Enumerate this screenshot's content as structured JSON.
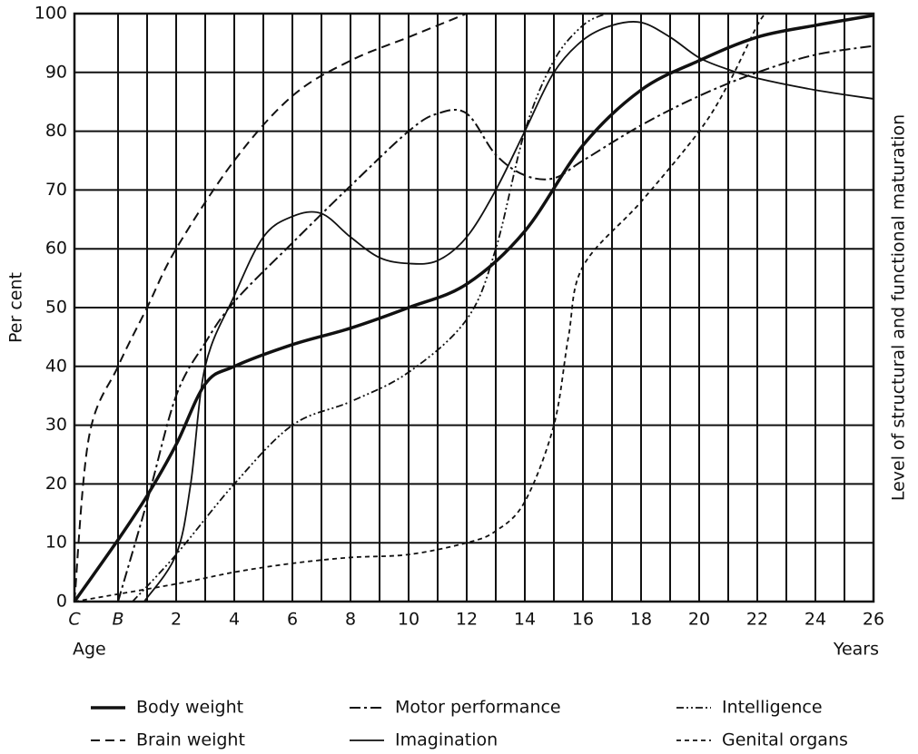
{
  "chart_data": {
    "type": "line",
    "ylabel": "Per cent",
    "y2label": "Level of structural and functional maturation",
    "xlabel_left": "Age",
    "xlabel_right": "Years",
    "xlim": [
      -1.5,
      26
    ],
    "ylim": [
      0,
      100
    ],
    "xticks": [
      {
        "value": -1.5,
        "label": "C"
      },
      {
        "value": 0,
        "label": "B"
      },
      2,
      4,
      6,
      8,
      10,
      12,
      14,
      16,
      18,
      20,
      22,
      24,
      26
    ],
    "xminor": [
      1,
      3,
      5,
      7,
      9,
      11,
      13,
      15,
      17,
      19,
      21,
      23,
      25
    ],
    "yticks": [
      0,
      10,
      20,
      30,
      40,
      50,
      60,
      70,
      80,
      90,
      100
    ],
    "grid": true,
    "series": [
      {
        "name": "Body weight",
        "color": "#111",
        "dash": "solid-thick",
        "x": [
          -1.5,
          0,
          1,
          2,
          3,
          4,
          6,
          8,
          10,
          12,
          14,
          16,
          18,
          20,
          22,
          24,
          26
        ],
        "values": [
          0,
          10.5,
          18,
          26.7,
          37,
          40,
          43.7,
          46.5,
          50,
          54,
          63,
          77.6,
          87,
          92,
          96,
          98,
          99.7
        ]
      },
      {
        "name": "Motor performance",
        "color": "#111",
        "dash": "dash-dot",
        "x": [
          0,
          1,
          2,
          3,
          4,
          6,
          8,
          10,
          11,
          12,
          13,
          14,
          15,
          16,
          18,
          20,
          22,
          24,
          26
        ],
        "values": [
          0,
          17,
          35,
          44,
          51,
          61,
          70.7,
          80,
          83,
          83,
          76,
          72.5,
          72,
          75,
          81,
          86,
          90,
          93,
          94.5
        ]
      },
      {
        "name": "Intelligence",
        "color": "#111",
        "dash": "dash-dot-dot",
        "x": [
          0.5,
          2,
          4,
          6,
          8,
          10,
          12,
          13,
          14,
          15,
          16,
          16.8
        ],
        "values": [
          0,
          8,
          20,
          30,
          34,
          39,
          48,
          60,
          80,
          92,
          98,
          100
        ]
      },
      {
        "name": "Brain weight",
        "color": "#111",
        "dash": "dashed",
        "x": [
          -1.5,
          -1,
          0,
          1,
          2,
          4,
          6,
          8,
          10,
          12
        ],
        "values": [
          0,
          28,
          40,
          50,
          60,
          75,
          86,
          92,
          96,
          100
        ]
      },
      {
        "name": "Imagination",
        "color": "#111",
        "dash": "solid",
        "x": [
          0.9,
          2,
          2.5,
          3,
          4,
          5,
          6,
          7,
          8,
          9,
          10,
          11,
          12,
          13,
          14,
          15,
          16,
          17,
          18,
          19,
          20,
          21,
          22,
          24,
          26
        ],
        "values": [
          0,
          8,
          20,
          40,
          52,
          62,
          65.5,
          66,
          62,
          58.5,
          57.5,
          58,
          62,
          70,
          80,
          90,
          95.5,
          98,
          98.5,
          96,
          92.5,
          90.5,
          89,
          87,
          85.5
        ]
      },
      {
        "name": "Genital organs",
        "color": "#111",
        "dash": "short-dash",
        "x": [
          -1.5,
          2,
          4,
          6,
          8,
          10,
          12,
          13,
          14,
          15,
          15.5,
          16,
          18,
          20,
          21,
          22,
          22.3
        ],
        "values": [
          0,
          3,
          5,
          6.5,
          7.5,
          8,
          10,
          12,
          17,
          30,
          45,
          57,
          68,
          80,
          88,
          98,
          100
        ]
      }
    ]
  }
}
